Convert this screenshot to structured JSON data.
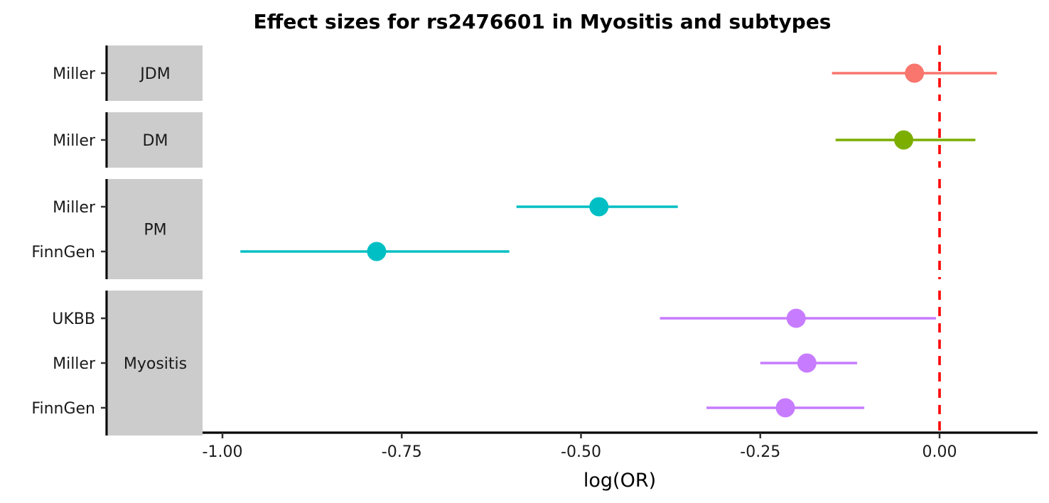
{
  "chart_data": {
    "type": "forest",
    "title": "Effect sizes for rs2476601 in Myositis and subtypes",
    "xlabel": "log(OR)",
    "ylabel": "",
    "xlim": [
      -1.0,
      0.0
    ],
    "xticks": [
      -1.0,
      -0.75,
      -0.5,
      -0.25,
      0.0
    ],
    "xtick_labels": [
      "-1.00",
      "-0.75",
      "-0.50",
      "-0.25",
      "0.00"
    ],
    "reference_line": {
      "x": 0.0,
      "color": "#ff0000",
      "style": "dashed"
    },
    "grid": false,
    "legend": "none",
    "facets": [
      {
        "label": "JDM",
        "color": "#F8766D",
        "rows": [
          {
            "study": "Miller",
            "estimate": -0.035,
            "lower": -0.15,
            "upper": 0.08
          }
        ]
      },
      {
        "label": "DM",
        "color": "#7CAE00",
        "rows": [
          {
            "study": "Miller",
            "estimate": -0.05,
            "lower": -0.145,
            "upper": 0.05
          }
        ]
      },
      {
        "label": "PM",
        "color": "#00BFC4",
        "rows": [
          {
            "study": "Miller",
            "estimate": -0.475,
            "lower": -0.59,
            "upper": -0.365
          },
          {
            "study": "FinnGen",
            "estimate": -0.785,
            "lower": -0.975,
            "upper": -0.6
          }
        ]
      },
      {
        "label": "Myositis",
        "color": "#C77CFF",
        "rows": [
          {
            "study": "UKBB",
            "estimate": -0.2,
            "lower": -0.39,
            "upper": -0.005
          },
          {
            "study": "Miller",
            "estimate": -0.185,
            "lower": -0.25,
            "upper": -0.115
          },
          {
            "study": "FinnGen",
            "estimate": -0.215,
            "lower": -0.325,
            "upper": -0.105
          }
        ]
      }
    ]
  }
}
